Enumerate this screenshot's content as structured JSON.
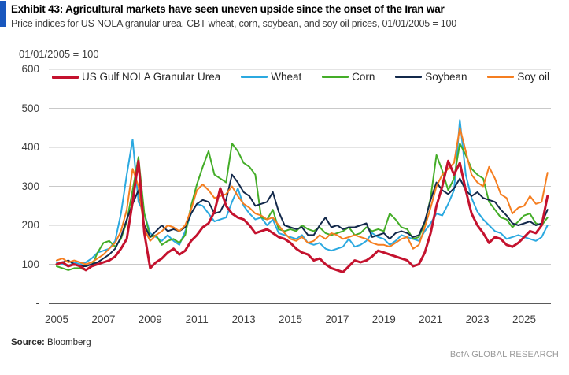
{
  "header": {
    "title": "Exhibit 43: Agricultural markets have seen uneven upside since the onset of the Iran war",
    "subtitle": "Price indices for US NOLA granular urea, CBT wheat, corn, soybean, and soy oil prices, 01/01/2005 = 100"
  },
  "footer": {
    "source_label": "Source:",
    "source_value": "Bloomberg",
    "brand": "BofA GLOBAL RESEARCH"
  },
  "colors": {
    "accent_bar": "#1957BE",
    "gridline": "#C9C9C9",
    "axis_line": "#5A5A5A",
    "tick_text": "#3D3D3D",
    "brand_text": "#9A9A9A"
  },
  "chart_data": {
    "type": "line",
    "title": "Exhibit 43: Agricultural markets have seen uneven upside since the onset of the Iran war",
    "index_note": "01/01/2005 = 100",
    "xlabel": "",
    "ylabel": "01/01/2005 = 100",
    "ylim": [
      0,
      600
    ],
    "xlim": [
      2004.7,
      2026.2
    ],
    "grid": "horizontal",
    "legend_position": "top-inside",
    "y_ticks": [
      {
        "value": 600,
        "label": "600"
      },
      {
        "value": 500,
        "label": "500"
      },
      {
        "value": 400,
        "label": "400"
      },
      {
        "value": 300,
        "label": "300"
      },
      {
        "value": 200,
        "label": "200"
      },
      {
        "value": 100,
        "label": "100"
      },
      {
        "value": 0,
        "label": "-"
      }
    ],
    "x_ticks": [
      2005,
      2007,
      2009,
      2011,
      2013,
      2015,
      2017,
      2019,
      2021,
      2023,
      2025
    ],
    "x": [
      2005,
      2005.25,
      2005.5,
      2005.75,
      2006,
      2006.25,
      2006.5,
      2006.75,
      2007,
      2007.25,
      2007.5,
      2007.75,
      2008,
      2008.25,
      2008.5,
      2008.75,
      2009,
      2009.25,
      2009.5,
      2009.75,
      2010,
      2010.25,
      2010.5,
      2010.75,
      2011,
      2011.25,
      2011.5,
      2011.75,
      2012,
      2012.25,
      2012.5,
      2012.75,
      2013,
      2013.25,
      2013.5,
      2013.75,
      2014,
      2014.25,
      2014.5,
      2014.75,
      2015,
      2015.25,
      2015.5,
      2015.75,
      2016,
      2016.25,
      2016.5,
      2016.75,
      2017,
      2017.25,
      2017.5,
      2017.75,
      2018,
      2018.25,
      2018.5,
      2018.75,
      2019,
      2019.25,
      2019.5,
      2019.75,
      2020,
      2020.25,
      2020.5,
      2020.75,
      2021,
      2021.25,
      2021.5,
      2021.75,
      2022,
      2022.25,
      2022.5,
      2022.75,
      2023,
      2023.25,
      2023.5,
      2023.75,
      2024,
      2024.25,
      2024.5,
      2024.75,
      2025,
      2025.25,
      2025.5,
      2025.75,
      2026
    ],
    "series": [
      {
        "name": "Wheat",
        "color": "#2BA9E0",
        "stroke_width": 2,
        "values": [
          105,
          100,
          95,
          105,
          100,
          105,
          115,
          130,
          135,
          140,
          160,
          230,
          330,
          420,
          260,
          230,
          180,
          170,
          160,
          175,
          160,
          150,
          185,
          230,
          255,
          250,
          230,
          210,
          215,
          220,
          260,
          295,
          250,
          230,
          215,
          220,
          200,
          215,
          180,
          175,
          170,
          165,
          175,
          155,
          150,
          155,
          140,
          135,
          140,
          145,
          165,
          145,
          150,
          160,
          180,
          170,
          165,
          150,
          160,
          175,
          170,
          165,
          160,
          185,
          205,
          230,
          225,
          255,
          290,
          470,
          330,
          270,
          235,
          215,
          200,
          185,
          180,
          165,
          170,
          175,
          170,
          165,
          160,
          170,
          200
        ]
      },
      {
        "name": "Corn",
        "color": "#44AD28",
        "stroke_width": 2,
        "values": [
          95,
          90,
          85,
          90,
          90,
          85,
          95,
          130,
          155,
          160,
          145,
          165,
          210,
          290,
          375,
          230,
          170,
          175,
          150,
          160,
          165,
          155,
          175,
          250,
          305,
          350,
          390,
          330,
          320,
          310,
          410,
          390,
          360,
          350,
          330,
          220,
          215,
          240,
          190,
          185,
          190,
          185,
          200,
          190,
          185,
          195,
          180,
          175,
          180,
          185,
          195,
          175,
          180,
          195,
          185,
          190,
          185,
          230,
          215,
          195,
          190,
          165,
          170,
          205,
          270,
          380,
          340,
          290,
          320,
          410,
          380,
          345,
          330,
          320,
          260,
          240,
          220,
          215,
          195,
          210,
          225,
          230,
          205,
          200,
          220
        ]
      },
      {
        "name": "Soybean",
        "color": "#13294B",
        "stroke_width": 2,
        "values": [
          100,
          105,
          110,
          100,
          95,
          95,
          100,
          105,
          115,
          125,
          140,
          170,
          215,
          255,
          290,
          200,
          170,
          185,
          200,
          185,
          190,
          185,
          195,
          230,
          255,
          265,
          260,
          230,
          235,
          265,
          330,
          310,
          285,
          275,
          250,
          255,
          260,
          285,
          235,
          200,
          195,
          190,
          195,
          175,
          175,
          200,
          220,
          195,
          200,
          190,
          195,
          195,
          200,
          205,
          170,
          175,
          180,
          165,
          180,
          185,
          180,
          170,
          175,
          210,
          265,
          310,
          290,
          280,
          295,
          320,
          290,
          275,
          285,
          270,
          265,
          260,
          240,
          225,
          205,
          200,
          205,
          210,
          200,
          205,
          240
        ]
      },
      {
        "name": "Soy oil",
        "color": "#F57E20",
        "stroke_width": 2,
        "values": [
          110,
          115,
          105,
          110,
          105,
          100,
          105,
          115,
          125,
          140,
          155,
          185,
          240,
          345,
          300,
          190,
          160,
          175,
          185,
          200,
          195,
          185,
          200,
          240,
          290,
          305,
          290,
          270,
          275,
          280,
          300,
          275,
          255,
          245,
          230,
          225,
          215,
          220,
          200,
          180,
          165,
          160,
          170,
          155,
          160,
          175,
          165,
          180,
          175,
          165,
          170,
          175,
          170,
          165,
          155,
          150,
          150,
          145,
          155,
          165,
          170,
          140,
          150,
          195,
          245,
          300,
          330,
          345,
          360,
          450,
          390,
          330,
          310,
          300,
          350,
          320,
          280,
          270,
          230,
          245,
          250,
          275,
          255,
          260,
          335
        ]
      },
      {
        "name": "US Gulf NOLA Granular Urea",
        "color": "#C4122E",
        "stroke_width": 3,
        "values": [
          100,
          105,
          95,
          100,
          95,
          85,
          95,
          100,
          105,
          110,
          120,
          140,
          165,
          260,
          365,
          180,
          90,
          105,
          115,
          130,
          140,
          125,
          135,
          160,
          175,
          195,
          205,
          235,
          295,
          250,
          230,
          220,
          215,
          200,
          180,
          185,
          190,
          180,
          170,
          165,
          155,
          140,
          130,
          125,
          110,
          115,
          100,
          90,
          85,
          80,
          95,
          110,
          105,
          110,
          120,
          135,
          130,
          125,
          120,
          115,
          110,
          95,
          100,
          130,
          180,
          250,
          300,
          365,
          330,
          360,
          290,
          230,
          200,
          180,
          155,
          170,
          165,
          150,
          145,
          155,
          170,
          185,
          180,
          200,
          275
        ]
      }
    ],
    "legend_order": [
      "US Gulf NOLA Granular Urea",
      "Wheat",
      "Corn",
      "Soybean",
      "Soy oil"
    ]
  }
}
